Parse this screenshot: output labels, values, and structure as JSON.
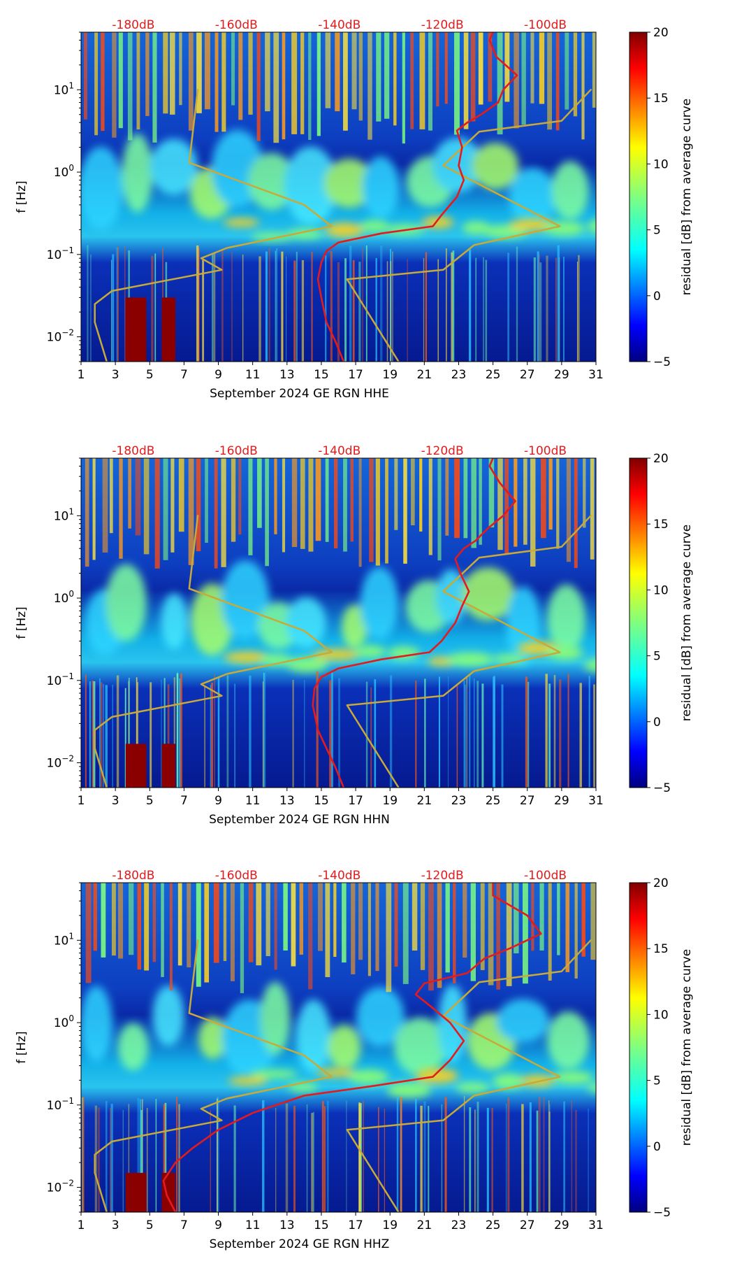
{
  "colors": {
    "background": "#ffffff",
    "psd_curve": "#e41a1c",
    "model_curve": "#c8aa3a",
    "top_label": "#e41a1c",
    "axis": "#000000"
  },
  "colorbar": {
    "label": "residual [dB] from average curve",
    "ticks": [
      "20",
      "15",
      "10",
      "5",
      "0",
      "−5"
    ],
    "range": [
      -5,
      20
    ],
    "colormap": "jet"
  },
  "chart_data": [
    {
      "type": "heatmap",
      "xlabel": "September 2024 GE RGN  HHE",
      "ylabel": "f [Hz]",
      "x_ticks": [
        "1",
        "3",
        "5",
        "7",
        "9",
        "11",
        "13",
        "15",
        "17",
        "19",
        "21",
        "23",
        "25",
        "27",
        "29",
        "31"
      ],
      "x_range": [
        1,
        31
      ],
      "y_scale": "log",
      "y_range": [
        0.005,
        50
      ],
      "y_ticks": [
        {
          "value": 10,
          "label": "10^1"
        },
        {
          "value": 1,
          "label": "10^0"
        },
        {
          "value": 0.1,
          "label": "10^-1"
        },
        {
          "value": 0.01,
          "label": "10^-2"
        }
      ],
      "top_axis_labels": [
        "-180dB",
        "-160dB",
        "-140dB",
        "-120dB",
        "-100dB"
      ],
      "psd_curve": [
        [
          25.0,
          50
        ],
        [
          24.8,
          40
        ],
        [
          25.2,
          25
        ],
        [
          26.4,
          15
        ],
        [
          25.6,
          10
        ],
        [
          25.3,
          7
        ],
        [
          24.3,
          5
        ],
        [
          23.5,
          4
        ],
        [
          22.9,
          3.2
        ],
        [
          23.2,
          2
        ],
        [
          23.0,
          1.2
        ],
        [
          23.3,
          0.8
        ],
        [
          22.9,
          0.5
        ],
        [
          22.0,
          0.3
        ],
        [
          21.5,
          0.22
        ],
        [
          18.5,
          0.18
        ],
        [
          16.0,
          0.14
        ],
        [
          15.3,
          0.11
        ],
        [
          15.0,
          0.08
        ],
        [
          14.8,
          0.05
        ],
        [
          15.0,
          0.03
        ],
        [
          15.3,
          0.015
        ],
        [
          15.8,
          0.009
        ],
        [
          16.3,
          0.005
        ]
      ],
      "model_curve": [
        [
          7.8,
          10
        ],
        [
          7.3,
          1.3
        ],
        [
          14.0,
          0.4
        ],
        [
          15.6,
          0.22
        ],
        [
          9.5,
          0.12
        ],
        [
          8.0,
          0.09
        ],
        [
          9.2,
          0.065
        ],
        [
          2.8,
          0.036
        ],
        [
          1.8,
          0.025
        ],
        [
          1.8,
          0.015
        ],
        [
          2.5,
          0.005
        ]
      ],
      "model_curve_high": [
        [
          30.7,
          10
        ],
        [
          29.0,
          4.2
        ],
        [
          24.2,
          3.1
        ],
        [
          22.1,
          1.2
        ],
        [
          28.9,
          0.22
        ],
        [
          23.9,
          0.13
        ],
        [
          22.1,
          0.065
        ],
        [
          16.5,
          0.05
        ],
        [
          19.5,
          0.005
        ]
      ],
      "hot_regions": [
        {
          "x": [
            3.6,
            4.8
          ],
          "y": [
            0.005,
            0.03
          ]
        },
        {
          "x": [
            5.7,
            6.5
          ],
          "y": [
            0.005,
            0.03
          ]
        }
      ]
    },
    {
      "type": "heatmap",
      "xlabel": "September 2024 GE RGN  HHN",
      "ylabel": "f [Hz]",
      "x_ticks": [
        "1",
        "3",
        "5",
        "7",
        "9",
        "11",
        "13",
        "15",
        "17",
        "19",
        "21",
        "23",
        "25",
        "27",
        "29",
        "31"
      ],
      "x_range": [
        1,
        31
      ],
      "y_scale": "log",
      "y_range": [
        0.005,
        50
      ],
      "y_ticks": [
        {
          "value": 10,
          "label": "10^1"
        },
        {
          "value": 1,
          "label": "10^0"
        },
        {
          "value": 0.1,
          "label": "10^-1"
        },
        {
          "value": 0.01,
          "label": "10^-2"
        }
      ],
      "top_axis_labels": [
        "-180dB",
        "-160dB",
        "-140dB",
        "-120dB",
        "-100dB"
      ],
      "psd_curve": [
        [
          25.0,
          50
        ],
        [
          24.8,
          40
        ],
        [
          25.4,
          25
        ],
        [
          26.3,
          15
        ],
        [
          25.6,
          10
        ],
        [
          24.7,
          7
        ],
        [
          24.0,
          5
        ],
        [
          23.3,
          4
        ],
        [
          22.8,
          3
        ],
        [
          23.1,
          2
        ],
        [
          23.6,
          1.2
        ],
        [
          23.2,
          0.8
        ],
        [
          22.8,
          0.5
        ],
        [
          22.0,
          0.3
        ],
        [
          21.3,
          0.22
        ],
        [
          18.5,
          0.18
        ],
        [
          16.0,
          0.14
        ],
        [
          15.0,
          0.11
        ],
        [
          14.6,
          0.08
        ],
        [
          14.5,
          0.05
        ],
        [
          14.8,
          0.025
        ],
        [
          15.3,
          0.015
        ],
        [
          15.8,
          0.009
        ],
        [
          16.3,
          0.005
        ]
      ],
      "model_curve": [
        [
          7.8,
          10
        ],
        [
          7.3,
          1.3
        ],
        [
          14.0,
          0.4
        ],
        [
          15.6,
          0.22
        ],
        [
          9.5,
          0.12
        ],
        [
          8.0,
          0.09
        ],
        [
          9.2,
          0.065
        ],
        [
          2.8,
          0.036
        ],
        [
          1.8,
          0.025
        ],
        [
          1.8,
          0.015
        ],
        [
          2.5,
          0.005
        ]
      ],
      "model_curve_high": [
        [
          30.7,
          10
        ],
        [
          29.0,
          4.2
        ],
        [
          24.2,
          3.1
        ],
        [
          22.1,
          1.2
        ],
        [
          28.9,
          0.22
        ],
        [
          23.9,
          0.13
        ],
        [
          22.1,
          0.065
        ],
        [
          16.5,
          0.05
        ],
        [
          19.5,
          0.005
        ]
      ],
      "hot_regions": [
        {
          "x": [
            3.6,
            4.8
          ],
          "y": [
            0.005,
            0.017
          ]
        },
        {
          "x": [
            5.7,
            6.5
          ],
          "y": [
            0.005,
            0.017
          ]
        }
      ]
    },
    {
      "type": "heatmap",
      "xlabel": "September 2024 GE RGN  HHZ",
      "ylabel": "f [Hz]",
      "x_ticks": [
        "1",
        "3",
        "5",
        "7",
        "9",
        "11",
        "13",
        "15",
        "17",
        "19",
        "21",
        "23",
        "25",
        "27",
        "29",
        "31"
      ],
      "x_range": [
        1,
        31
      ],
      "y_scale": "log",
      "y_range": [
        0.005,
        50
      ],
      "y_ticks": [
        {
          "value": 10,
          "label": "10^1"
        },
        {
          "value": 1,
          "label": "10^0"
        },
        {
          "value": 0.1,
          "label": "10^-1"
        },
        {
          "value": 0.01,
          "label": "10^-2"
        }
      ],
      "top_axis_labels": [
        "-180dB",
        "-160dB",
        "-140dB",
        "-120dB",
        "-100dB"
      ],
      "psd_curve": [
        [
          25.0,
          50
        ],
        [
          25.0,
          35
        ],
        [
          27.0,
          20
        ],
        [
          27.8,
          12
        ],
        [
          26.0,
          8
        ],
        [
          24.5,
          6
        ],
        [
          23.5,
          4
        ],
        [
          21.0,
          3
        ],
        [
          20.5,
          2.2
        ],
        [
          21.5,
          1.5
        ],
        [
          22.5,
          1.0
        ],
        [
          23.3,
          0.6
        ],
        [
          22.5,
          0.35
        ],
        [
          21.5,
          0.22
        ],
        [
          18.0,
          0.17
        ],
        [
          14.0,
          0.13
        ],
        [
          11.0,
          0.08
        ],
        [
          9.0,
          0.05
        ],
        [
          7.5,
          0.03
        ],
        [
          6.5,
          0.02
        ],
        [
          5.8,
          0.012
        ],
        [
          6.0,
          0.008
        ],
        [
          6.5,
          0.005
        ]
      ],
      "model_curve": [
        [
          7.8,
          10
        ],
        [
          7.3,
          1.3
        ],
        [
          14.0,
          0.4
        ],
        [
          15.6,
          0.22
        ],
        [
          9.5,
          0.12
        ],
        [
          8.0,
          0.09
        ],
        [
          9.2,
          0.065
        ],
        [
          2.8,
          0.036
        ],
        [
          1.8,
          0.025
        ],
        [
          1.8,
          0.015
        ],
        [
          2.5,
          0.005
        ]
      ],
      "model_curve_high": [
        [
          30.7,
          10
        ],
        [
          29.0,
          4.2
        ],
        [
          24.2,
          3.1
        ],
        [
          22.1,
          1.2
        ],
        [
          28.9,
          0.22
        ],
        [
          23.9,
          0.13
        ],
        [
          22.1,
          0.065
        ],
        [
          16.5,
          0.05
        ],
        [
          19.5,
          0.005
        ]
      ],
      "hot_regions": [
        {
          "x": [
            3.6,
            4.8
          ],
          "y": [
            0.005,
            0.015
          ]
        },
        {
          "x": [
            5.7,
            6.5
          ],
          "y": [
            0.005,
            0.015
          ]
        }
      ]
    }
  ]
}
